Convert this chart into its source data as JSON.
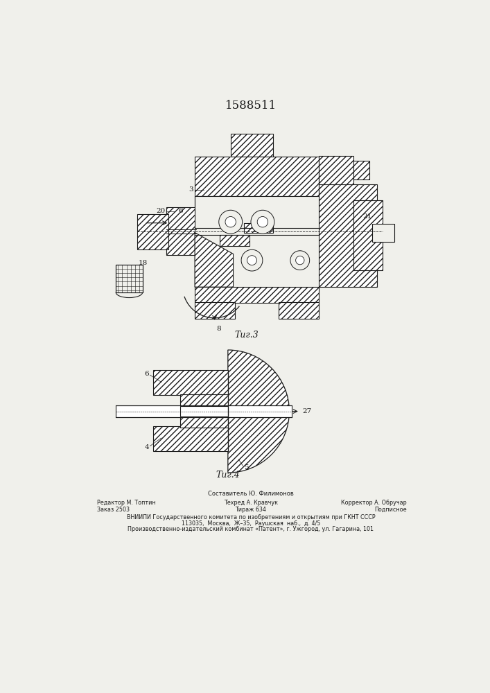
{
  "title_number": "1588511",
  "fig3_label": "Τиг.3",
  "fig4_label": "Τиг.4",
  "footer_line1": "Составитель Ю. Филимонов",
  "footer_col1_row1": "Редактор М. Топтин",
  "footer_col2_row1": "Техред А. Кравчук",
  "footer_col3_row1": "Корректор А. Обручар",
  "footer_col1_row2": "Заказ 2503",
  "footer_col2_row2": "Тираж 634",
  "footer_col3_row2": "Подписное",
  "footer_line4": "ВНИИПИ Государственного комитета по изобретениям и открытиям при ГКНТ СССР",
  "footer_line5": "113035,  Москва,  Ж–35,  Раушская  наб.,  д. 4/5",
  "footer_line6": "Производственно-издательский комбинат «Патент», г. Ужгород, ул. Гагарина, 101",
  "bg_color": "#f0f0eb",
  "line_color": "#1a1a1a"
}
